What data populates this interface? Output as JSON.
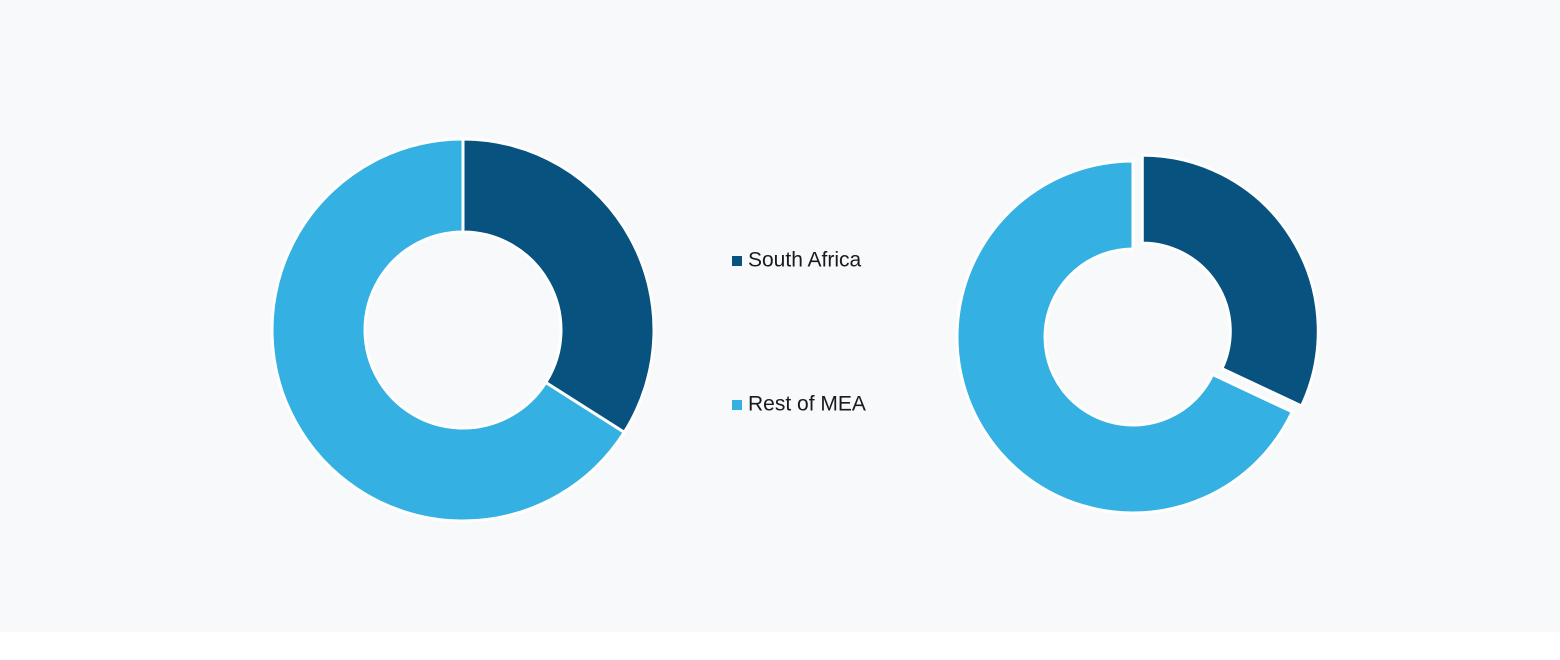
{
  "chart_data": [
    {
      "type": "donut",
      "categories": [
        "South Africa",
        "Rest of MEA"
      ],
      "values": [
        34,
        66
      ],
      "colors": [
        "#08527f",
        "#35b0e2"
      ]
    },
    {
      "type": "donut",
      "categories": [
        "South Africa",
        "Rest of MEA"
      ],
      "values": [
        32,
        68
      ],
      "colors": [
        "#08527f",
        "#35b0e2"
      ]
    }
  ]
}
